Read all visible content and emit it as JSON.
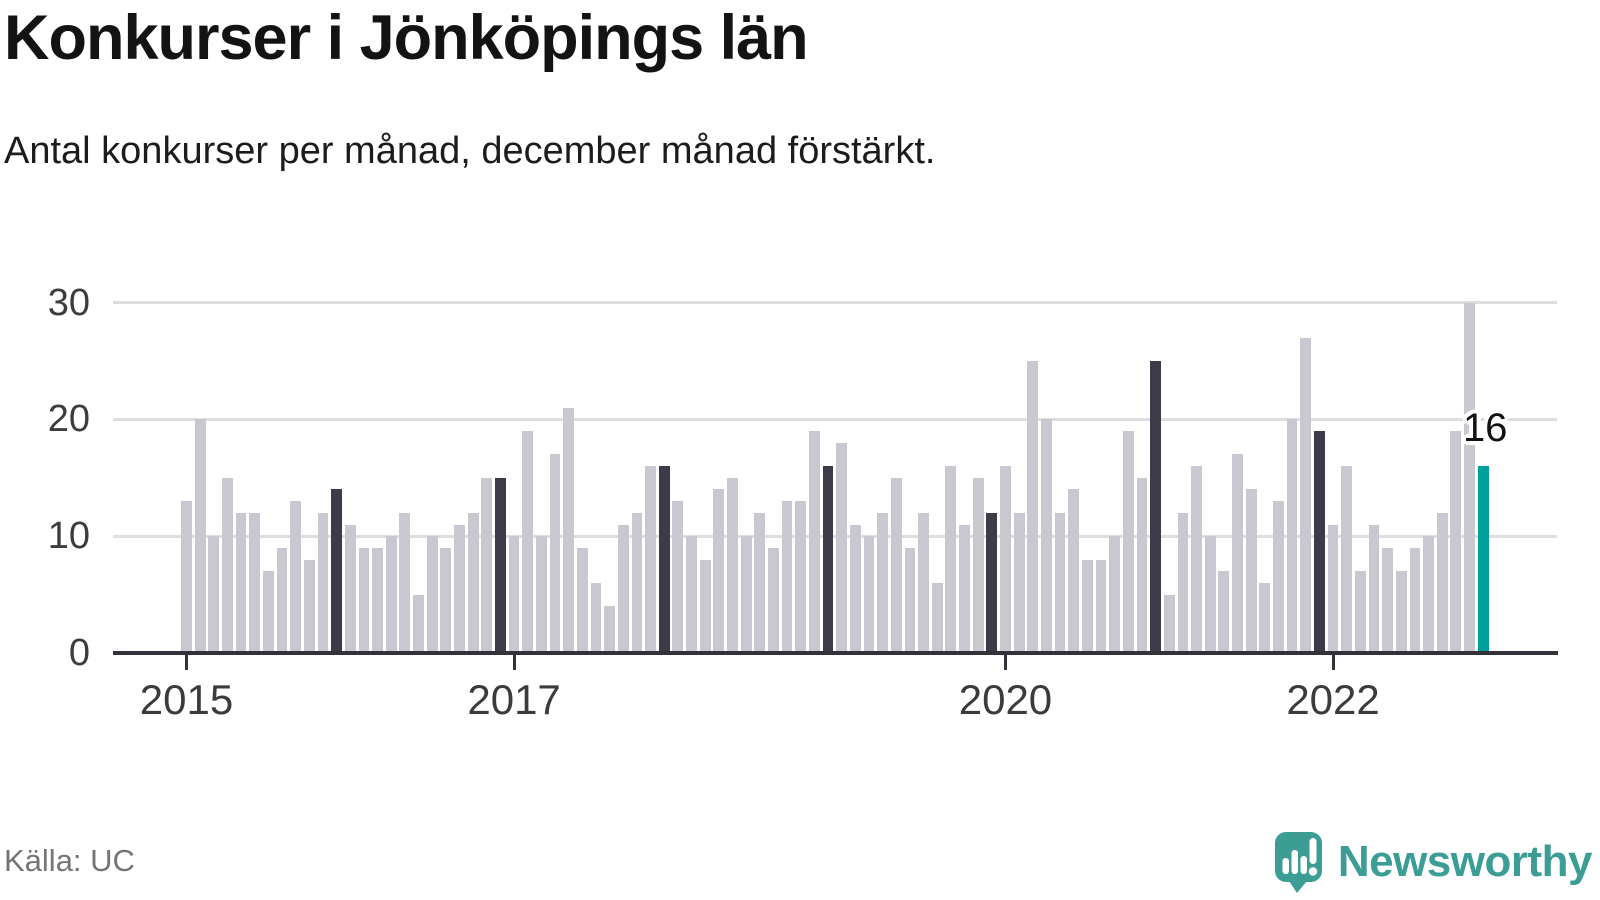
{
  "header": {
    "title": "Konkurser i Jönköpings län",
    "subtitle": "Antal konkurser per månad, december månad förstärkt."
  },
  "footer": {
    "source": "Källa: UC",
    "brand": "Newsworthy"
  },
  "chart_data": {
    "type": "bar",
    "title": "Konkurser i Jönköpings län",
    "subtitle": "Antal konkurser per månad, december månad förstärkt.",
    "x_unit": "month",
    "x_range": "2015-01 to 2022-12",
    "series": [
      {
        "year": "2015",
        "values": [
          13,
          20,
          10,
          15,
          12,
          12,
          7,
          9,
          13,
          8,
          12,
          14
        ]
      },
      {
        "year": "2016",
        "values": [
          11,
          9,
          9,
          10,
          12,
          5,
          10,
          9,
          11,
          12,
          15,
          15
        ]
      },
      {
        "year": "2017",
        "values": [
          10,
          19,
          10,
          17,
          21,
          9,
          6,
          4,
          11,
          12,
          16,
          16
        ]
      },
      {
        "year": "2018",
        "values": [
          13,
          10,
          8,
          14,
          15,
          10,
          12,
          9,
          13,
          13,
          19,
          16
        ]
      },
      {
        "year": "2019",
        "values": [
          18,
          11,
          10,
          12,
          15,
          9,
          12,
          6,
          16,
          11,
          15,
          12
        ]
      },
      {
        "year": "2020",
        "values": [
          16,
          12,
          25,
          20,
          12,
          14,
          8,
          8,
          10,
          19,
          15,
          25
        ]
      },
      {
        "year": "2021",
        "values": [
          5,
          12,
          16,
          10,
          7,
          17,
          14,
          6,
          13,
          20,
          27,
          19
        ]
      },
      {
        "year": "2022",
        "values": [
          11,
          16,
          7,
          11,
          9,
          7,
          9,
          10,
          12,
          19,
          30,
          16
        ]
      }
    ],
    "highlight": {
      "rule": "december-bars-darkened-latest-teal",
      "default_color": "#c9c8d1",
      "december_color": "#3d3b49",
      "latest_color": "#00a09a"
    },
    "annotation": {
      "label": "16",
      "month": "2022-12"
    },
    "yticks": [
      0,
      10,
      20,
      30
    ],
    "ylim": [
      0,
      30
    ],
    "xticks": [
      {
        "label": "2015",
        "month_index": 0
      },
      {
        "label": "2017",
        "month_index": 24
      },
      {
        "label": "2020",
        "month_index": 60
      },
      {
        "label": "2022",
        "month_index": 84
      }
    ],
    "grid": "horizontal",
    "legend": "none",
    "colors": {
      "axis": "#32323a",
      "gridline": "#dedee1",
      "tick_label": "#3b3b3b",
      "title": "#131313",
      "source_text": "#757575",
      "brand_teal": "#3c9d95"
    }
  }
}
